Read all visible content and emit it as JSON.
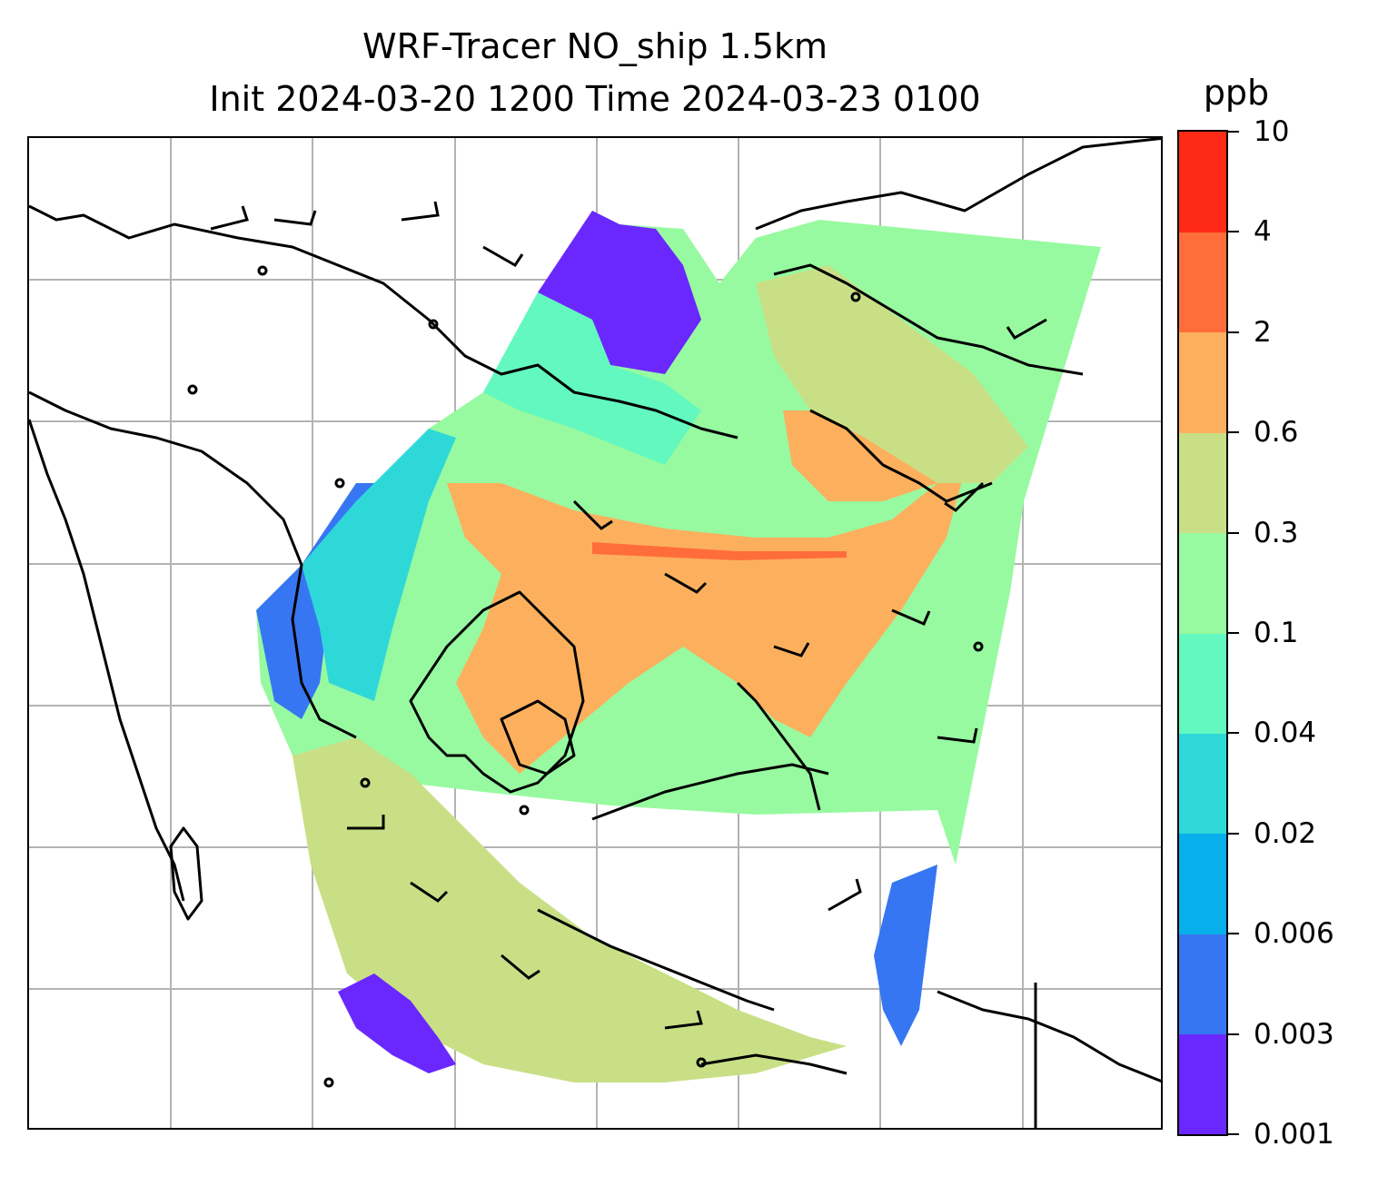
{
  "title_line1": "WRF-Tracer NO_ship 1.5km",
  "title_line2": "Init 2024-03-20 1200 Time 2024-03-23 0100",
  "colorbar": {
    "units": "ppb",
    "levels": [
      "0.001",
      "0.003",
      "0.006",
      "0.02",
      "0.04",
      "0.1",
      "0.3",
      "0.6",
      "2",
      "4",
      "10"
    ],
    "colors": [
      "#6a28ff",
      "#3776f2",
      "#07b0ea",
      "#2fd8d8",
      "#63f8bf",
      "#97faa0",
      "#c9df86",
      "#fcb05e",
      "#ff6d3b",
      "#ff2a15"
    ]
  },
  "map": {
    "grid": true,
    "coastline_color": "#000000",
    "wind_barbs": "black",
    "calm_marker": "circle"
  }
}
